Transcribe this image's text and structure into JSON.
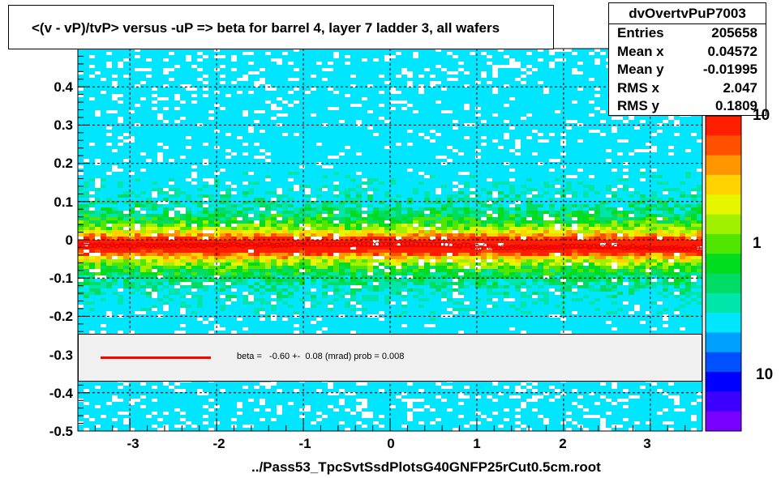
{
  "title": "<(v - vP)/tvP> versus  -uP => beta for barrel 4, layer 7 ladder 3, all wafers",
  "stats": {
    "name": "dvOvertvPuP7003",
    "rows": [
      {
        "label": "Entries",
        "value": "205658"
      },
      {
        "label": "Mean x",
        "value": "0.04572"
      },
      {
        "label": "Mean y",
        "value": "-0.01995"
      },
      {
        "label": "RMS x",
        "value": "2.047"
      },
      {
        "label": "RMS y",
        "value": "0.1809"
      }
    ]
  },
  "legend": {
    "text": "beta =   -0.60 +-  0.08 (mrad) prob = 0.008",
    "color": "#ff0000"
  },
  "footer": "../Pass53_TpcSvtSsdPlotsG40GNFP25rCut0.5cm.root",
  "colorbar": {
    "labels": [
      "10",
      "1",
      "10"
    ]
  },
  "chart_data": {
    "type": "heatmap",
    "title": "<(v - vP)/tvP> versus  -uP => beta for barrel 4, layer 7 ladder 3, all wafers",
    "xlabel": "../Pass53_TpcSvtSsdPlotsG40GNFP25rCut0.5cm.root",
    "ylabel": "",
    "xlim": [
      -3.6,
      3.6
    ],
    "ylim": [
      -0.5,
      0.5
    ],
    "x_ticks": [
      "-3",
      "-2",
      "-1",
      "0",
      "1",
      "2",
      "3"
    ],
    "y_ticks": [
      "-0.5",
      "-0.4",
      "-0.3",
      "-0.2",
      "-0.1",
      "0",
      "0.1",
      "0.2",
      "0.3",
      "0.4"
    ],
    "grid": true,
    "z_scale": "log",
    "profile": {
      "x": [
        -3.5,
        -3.0,
        -2.5,
        -2.0,
        -1.5,
        -1.0,
        -0.5,
        0.0,
        0.5,
        1.0,
        1.5,
        2.0,
        2.5,
        3.0,
        3.5
      ],
      "y": [
        -0.015,
        -0.014,
        -0.014,
        -0.013,
        -0.014,
        -0.012,
        -0.011,
        -0.01,
        -0.012,
        -0.018,
        -0.019,
        -0.018,
        -0.019,
        -0.02,
        -0.022
      ]
    },
    "fit_line": {
      "y_at_xmin": -0.012,
      "y_at_xmax": -0.022
    },
    "colors": {
      "scale": [
        "#7800ff",
        "#3c00ff",
        "#0000ff",
        "#0050ff",
        "#00a0ff",
        "#00e6ff",
        "#00e6aa",
        "#00dc64",
        "#00dc1e",
        "#50e600",
        "#a0f000",
        "#e6f500",
        "#ffd200",
        "#ff9600",
        "#ff5000",
        "#ff1e00"
      ],
      "profile": "#cc0000",
      "fit": "#ff0000"
    }
  }
}
